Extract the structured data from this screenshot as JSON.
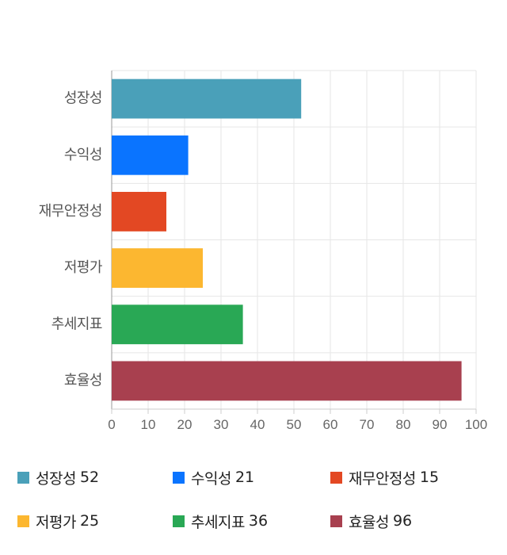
{
  "chart_data": {
    "type": "bar",
    "orientation": "horizontal",
    "categories": [
      "성장성",
      "수익성",
      "재무안정성",
      "저평가",
      "추세지표",
      "효율성"
    ],
    "values": [
      52,
      21,
      15,
      25,
      36,
      96
    ],
    "colors": [
      "#4aa0b9",
      "#0a74ff",
      "#e34823",
      "#fcb730",
      "#29a855",
      "#a8404f"
    ],
    "xlim": [
      0,
      100
    ],
    "xticks": [
      "0",
      "10",
      "20",
      "30",
      "40",
      "50",
      "60",
      "70",
      "80",
      "90",
      "100"
    ],
    "grid": true,
    "legend_position": "bottom"
  },
  "legend": [
    {
      "label": "성장성",
      "value": "52",
      "color": "#4aa0b9"
    },
    {
      "label": "수익성",
      "value": "21",
      "color": "#0a74ff"
    },
    {
      "label": "재무안정성",
      "value": "15",
      "color": "#e34823"
    },
    {
      "label": "저평가",
      "value": "25",
      "color": "#fcb730"
    },
    {
      "label": "추세지표",
      "value": "36",
      "color": "#29a855"
    },
    {
      "label": "효율성",
      "value": "96",
      "color": "#a8404f"
    }
  ]
}
